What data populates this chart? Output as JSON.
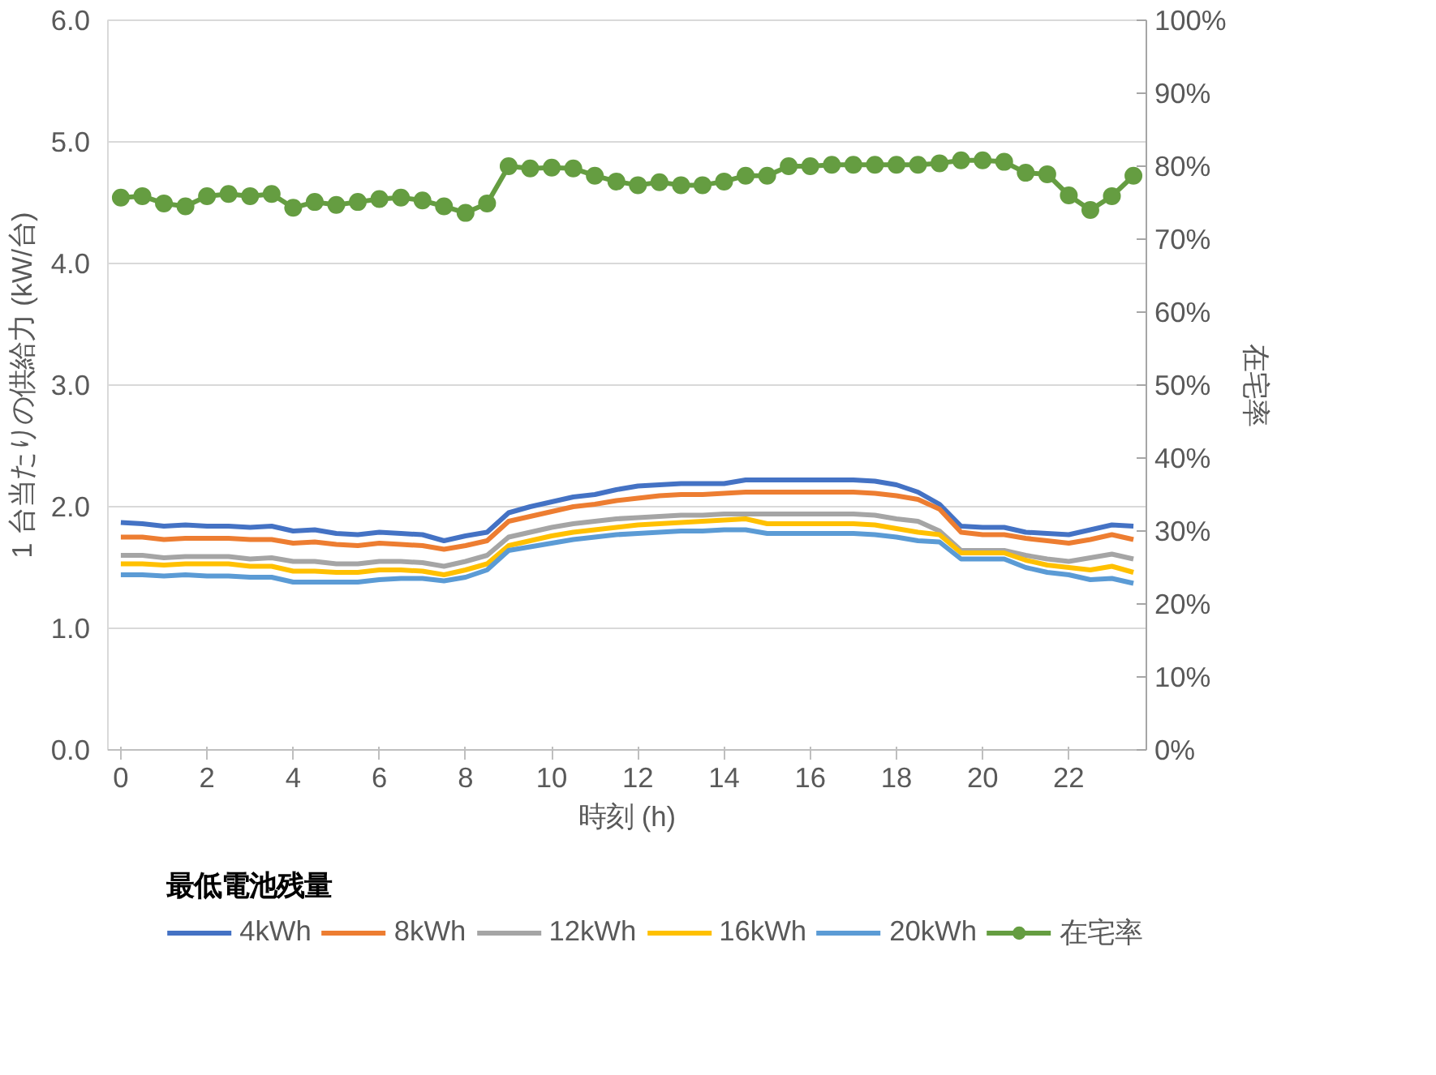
{
  "chart_data": {
    "type": "line",
    "xlabel": "時刻 (h)",
    "ylabel": "1 台当たりの供給力 (kW/台)",
    "y2label": "在宅率",
    "legend_title": "最低電池残量",
    "x": [
      0,
      0.5,
      1,
      1.5,
      2,
      2.5,
      3,
      3.5,
      4,
      4.5,
      5,
      5.5,
      6,
      6.5,
      7,
      7.5,
      8,
      8.5,
      9,
      9.5,
      10,
      10.5,
      11,
      11.5,
      12,
      12.5,
      13,
      13.5,
      14,
      14.5,
      15,
      15.5,
      16,
      16.5,
      17,
      17.5,
      18,
      18.5,
      19,
      19.5,
      20,
      20.5,
      21,
      21.5,
      22,
      22.5,
      23,
      23.5
    ],
    "xlim": [
      -0.3,
      23.8
    ],
    "xticks": [
      0,
      2,
      4,
      6,
      8,
      10,
      12,
      14,
      16,
      18,
      20,
      22
    ],
    "ylim": [
      0,
      6
    ],
    "yticks": [
      {
        "value": 0,
        "label": "0.0"
      },
      {
        "value": 1,
        "label": "1.0"
      },
      {
        "value": 2,
        "label": "2.0"
      },
      {
        "value": 3,
        "label": "3.0"
      },
      {
        "value": 4,
        "label": "4.0"
      },
      {
        "value": 5,
        "label": "5.0"
      },
      {
        "value": 6,
        "label": "6.0"
      }
    ],
    "y2lim": [
      0,
      100
    ],
    "y2ticks": [
      {
        "value": 0,
        "label": "0%"
      },
      {
        "value": 10,
        "label": "10%"
      },
      {
        "value": 20,
        "label": "20%"
      },
      {
        "value": 30,
        "label": "30%"
      },
      {
        "value": 40,
        "label": "40%"
      },
      {
        "value": 50,
        "label": "50%"
      },
      {
        "value": 60,
        "label": "60%"
      },
      {
        "value": 70,
        "label": "70%"
      },
      {
        "value": 80,
        "label": "80%"
      },
      {
        "value": 90,
        "label": "90%"
      },
      {
        "value": 100,
        "label": "100%"
      }
    ],
    "grid": "y",
    "legend": "bottom",
    "marker": "none",
    "line_style": "solid",
    "series": [
      {
        "name": "4kWh",
        "color": "#4472c4",
        "values": [
          1.87,
          1.86,
          1.84,
          1.85,
          1.84,
          1.84,
          1.83,
          1.84,
          1.8,
          1.81,
          1.78,
          1.77,
          1.79,
          1.78,
          1.77,
          1.72,
          1.76,
          1.79,
          1.95,
          2.0,
          2.04,
          2.08,
          2.1,
          2.14,
          2.17,
          2.18,
          2.19,
          2.19,
          2.19,
          2.22,
          2.22,
          2.22,
          2.22,
          2.22,
          2.22,
          2.21,
          2.18,
          2.12,
          2.02,
          1.84,
          1.83,
          1.83,
          1.79,
          1.78,
          1.77,
          1.81,
          1.85,
          1.84
        ]
      },
      {
        "name": "8kWh",
        "color": "#ed7d31",
        "values": [
          1.75,
          1.75,
          1.73,
          1.74,
          1.74,
          1.74,
          1.73,
          1.73,
          1.7,
          1.71,
          1.69,
          1.68,
          1.7,
          1.69,
          1.68,
          1.65,
          1.68,
          1.72,
          1.88,
          1.92,
          1.96,
          2.0,
          2.02,
          2.05,
          2.07,
          2.09,
          2.1,
          2.1,
          2.11,
          2.12,
          2.12,
          2.12,
          2.12,
          2.12,
          2.12,
          2.11,
          2.09,
          2.06,
          1.98,
          1.79,
          1.77,
          1.77,
          1.74,
          1.72,
          1.7,
          1.73,
          1.77,
          1.73
        ]
      },
      {
        "name": "12kWh",
        "color": "#a5a5a5",
        "values": [
          1.6,
          1.6,
          1.58,
          1.59,
          1.59,
          1.59,
          1.57,
          1.58,
          1.55,
          1.55,
          1.53,
          1.53,
          1.55,
          1.55,
          1.54,
          1.51,
          1.55,
          1.6,
          1.75,
          1.79,
          1.83,
          1.86,
          1.88,
          1.9,
          1.91,
          1.92,
          1.93,
          1.93,
          1.94,
          1.94,
          1.94,
          1.94,
          1.94,
          1.94,
          1.94,
          1.93,
          1.9,
          1.88,
          1.8,
          1.64,
          1.64,
          1.64,
          1.6,
          1.57,
          1.55,
          1.58,
          1.61,
          1.57
        ]
      },
      {
        "name": "16kWh",
        "color": "#ffc000",
        "values": [
          1.53,
          1.53,
          1.52,
          1.53,
          1.53,
          1.53,
          1.51,
          1.51,
          1.47,
          1.47,
          1.46,
          1.46,
          1.48,
          1.48,
          1.47,
          1.44,
          1.48,
          1.53,
          1.68,
          1.72,
          1.76,
          1.79,
          1.81,
          1.83,
          1.85,
          1.86,
          1.87,
          1.88,
          1.89,
          1.9,
          1.86,
          1.86,
          1.86,
          1.86,
          1.86,
          1.85,
          1.82,
          1.79,
          1.77,
          1.62,
          1.62,
          1.62,
          1.56,
          1.52,
          1.5,
          1.48,
          1.51,
          1.46
        ]
      },
      {
        "name": "20kWh",
        "color": "#5b9bd5",
        "values": [
          1.44,
          1.44,
          1.43,
          1.44,
          1.43,
          1.43,
          1.42,
          1.42,
          1.38,
          1.38,
          1.38,
          1.38,
          1.4,
          1.41,
          1.41,
          1.39,
          1.42,
          1.48,
          1.64,
          1.67,
          1.7,
          1.73,
          1.75,
          1.77,
          1.78,
          1.79,
          1.8,
          1.8,
          1.81,
          1.81,
          1.78,
          1.78,
          1.78,
          1.78,
          1.78,
          1.77,
          1.75,
          1.72,
          1.71,
          1.57,
          1.57,
          1.57,
          1.5,
          1.46,
          1.44,
          1.4,
          1.41,
          1.37
        ]
      },
      {
        "name": "在宅率",
        "color": "#659d41",
        "axis": "y2",
        "marker": "circle",
        "values": [
          75.7,
          75.9,
          74.9,
          74.5,
          75.9,
          76.2,
          75.9,
          76.2,
          74.3,
          75.1,
          74.7,
          75.1,
          75.5,
          75.7,
          75.3,
          74.5,
          73.6,
          74.9,
          80.0,
          79.7,
          79.8,
          79.7,
          78.7,
          77.9,
          77.4,
          77.8,
          77.4,
          77.4,
          77.9,
          78.7,
          78.7,
          80.0,
          80.0,
          80.2,
          80.2,
          80.2,
          80.2,
          80.2,
          80.4,
          80.8,
          80.8,
          80.6,
          79.1,
          78.9,
          76.0,
          74.0,
          75.9,
          78.7
        ]
      }
    ]
  }
}
